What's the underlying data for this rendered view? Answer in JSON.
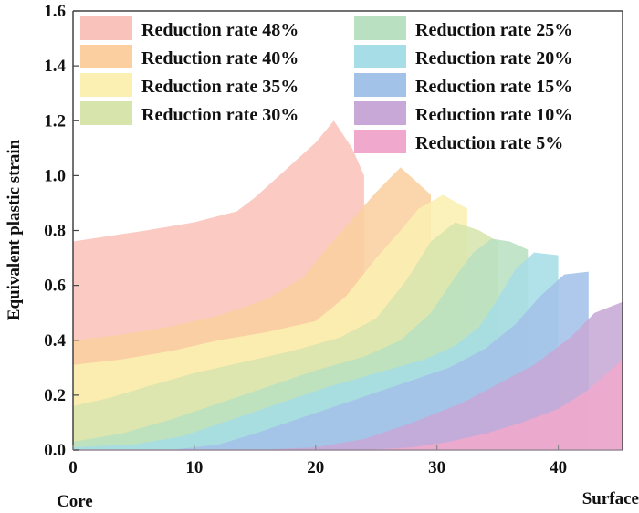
{
  "chart_data": {
    "type": "area",
    "title": "",
    "xlabel_left": "Core",
    "xlabel_right": "Surface",
    "ylabel": "Equivalent plastic strain",
    "xlim": [
      0,
      45.3
    ],
    "ylim": [
      0,
      1.6
    ],
    "x_ticks": [
      "0",
      "10",
      "20",
      "30",
      "40"
    ],
    "x_tick_values": [
      0,
      10,
      20,
      30,
      40
    ],
    "y_ticks": [
      "0.0",
      "0.2",
      "0.4",
      "0.6",
      "0.8",
      "1.0",
      "1.2",
      "1.4",
      "1.6"
    ],
    "y_tick_values": [
      0,
      0.2,
      0.4,
      0.6,
      0.8,
      1.0,
      1.2,
      1.4,
      1.6
    ],
    "grid": false,
    "legend_position": "top",
    "series": [
      {
        "name": "Reduction rate 48%",
        "color": "#f9c3bb",
        "x": [
          0,
          3,
          6,
          10,
          13.5,
          15,
          17,
          18.5,
          20,
          21.5,
          23,
          24,
          24
        ],
        "y": [
          0.76,
          0.78,
          0.8,
          0.83,
          0.87,
          0.92,
          1.0,
          1.06,
          1.12,
          1.2,
          1.1,
          1.0,
          0
        ]
      },
      {
        "name": "Reduction rate 40%",
        "color": "#fbcf9f",
        "x": [
          0,
          4,
          8,
          12,
          16,
          19,
          21,
          23,
          25,
          27,
          28.5,
          29.5,
          29.5
        ],
        "y": [
          0.4,
          0.42,
          0.45,
          0.49,
          0.55,
          0.63,
          0.74,
          0.84,
          0.94,
          1.03,
          0.97,
          0.93,
          0
        ]
      },
      {
        "name": "Reduction rate 35%",
        "color": "#fbf0b2",
        "x": [
          0,
          4,
          8,
          12,
          16,
          20,
          22.5,
          25,
          27,
          28.5,
          30.5,
          32.5,
          32.5
        ],
        "y": [
          0.31,
          0.33,
          0.36,
          0.4,
          0.43,
          0.47,
          0.56,
          0.7,
          0.8,
          0.88,
          0.93,
          0.88,
          0
        ]
      },
      {
        "name": "Reduction rate 30%",
        "color": "#d7e5ad",
        "x": [
          0,
          3,
          6,
          10,
          14,
          18,
          22,
          25,
          27.5,
          29.5,
          31.5,
          33.5,
          35,
          35
        ],
        "y": [
          0.16,
          0.19,
          0.23,
          0.28,
          0.32,
          0.36,
          0.41,
          0.48,
          0.62,
          0.76,
          0.83,
          0.8,
          0.76,
          0
        ]
      },
      {
        "name": "Reduction rate 25%",
        "color": "#b9e0c0",
        "x": [
          0,
          4,
          8,
          12,
          16,
          20,
          24,
          27,
          29.5,
          31.5,
          33,
          34.5,
          36,
          37.5,
          37.5
        ],
        "y": [
          0.03,
          0.06,
          0.11,
          0.17,
          0.23,
          0.29,
          0.34,
          0.4,
          0.5,
          0.63,
          0.72,
          0.77,
          0.76,
          0.73,
          0
        ]
      },
      {
        "name": "Reduction rate 20%",
        "color": "#a6dde6",
        "x": [
          0,
          5,
          9,
          13,
          17,
          21,
          25,
          29,
          31.5,
          33.5,
          35,
          36.5,
          38,
          40,
          40
        ],
        "y": [
          0.01,
          0.02,
          0.05,
          0.11,
          0.17,
          0.23,
          0.28,
          0.33,
          0.38,
          0.45,
          0.55,
          0.66,
          0.72,
          0.71,
          0
        ]
      },
      {
        "name": "Reduction rate 15%",
        "color": "#a3c2e8",
        "x": [
          0,
          8,
          12,
          15,
          19,
          23,
          27,
          31,
          34,
          36.5,
          38.5,
          40.5,
          42.5,
          42.5
        ],
        "y": [
          0.0,
          0.0,
          0.02,
          0.06,
          0.12,
          0.18,
          0.24,
          0.3,
          0.37,
          0.46,
          0.56,
          0.64,
          0.65,
          0
        ]
      },
      {
        "name": "Reduction rate 10%",
        "color": "#c7a8d6",
        "x": [
          0,
          15,
          20,
          24,
          28,
          32,
          35,
          38,
          41,
          43,
          45.3
        ],
        "y": [
          0.0,
          0.0,
          0.01,
          0.04,
          0.1,
          0.17,
          0.24,
          0.31,
          0.41,
          0.5,
          0.54
        ]
      },
      {
        "name": "Reduction rate 5%",
        "color": "#f0a8cc",
        "x": [
          0,
          24,
          28,
          31,
          34,
          37,
          40,
          42.5,
          45.3
        ],
        "y": [
          0.0,
          0.0,
          0.01,
          0.03,
          0.06,
          0.1,
          0.15,
          0.22,
          0.33
        ]
      }
    ]
  }
}
